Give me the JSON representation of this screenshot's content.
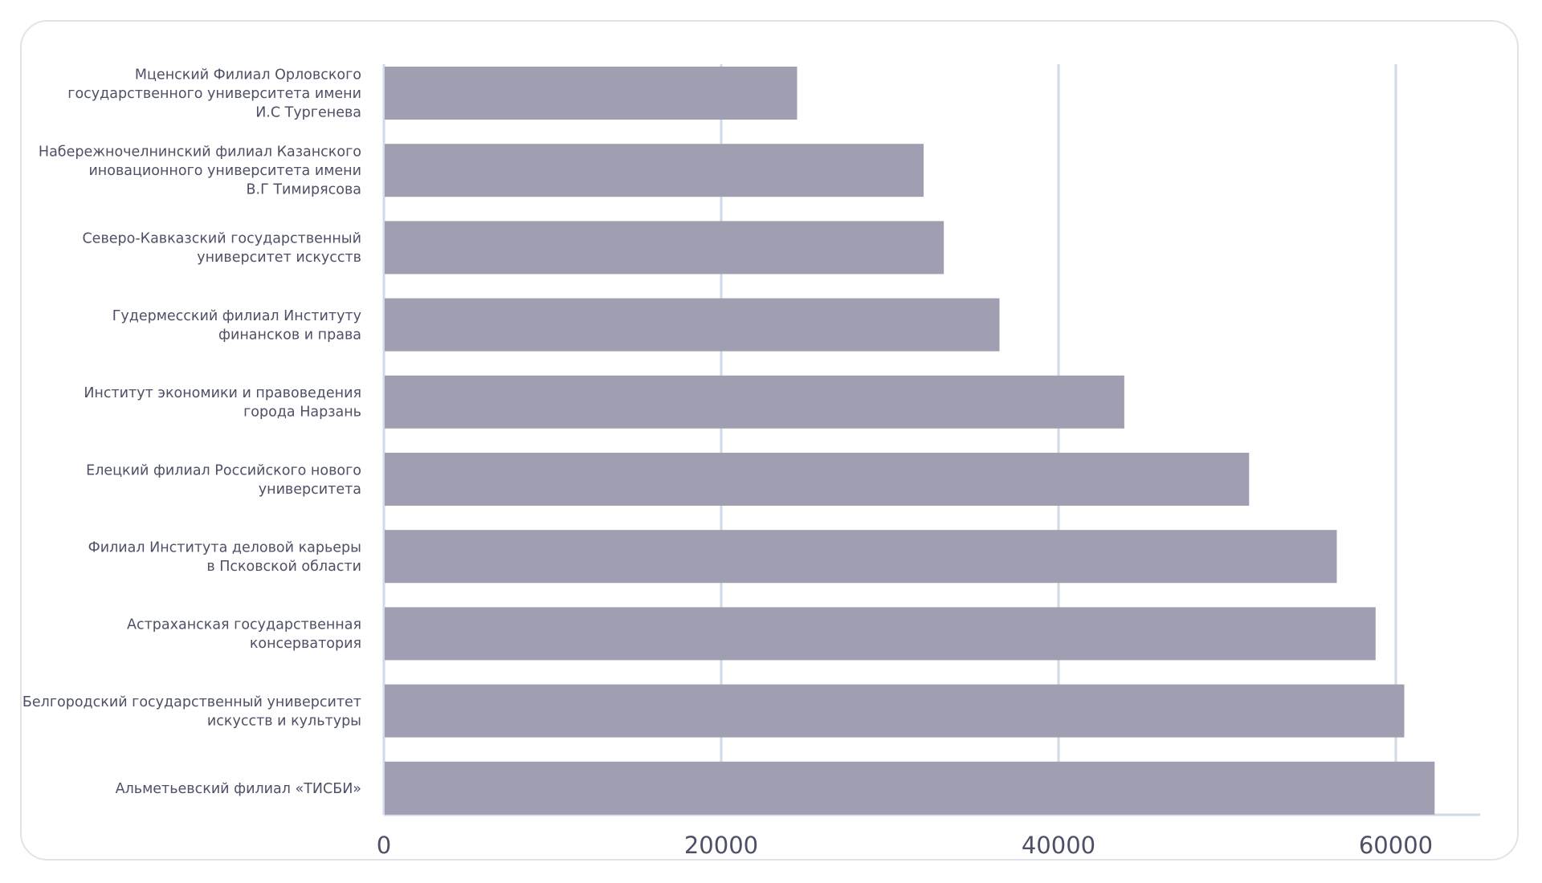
{
  "chart_data": {
    "type": "bar",
    "orientation": "horizontal",
    "title": "",
    "xlabel": "",
    "ylabel": "",
    "grid": true,
    "xlim": [
      0,
      65000
    ],
    "xticks": [
      "0",
      "20000",
      "40000",
      "60000"
    ],
    "categories": [
      [
        "Мценский Филиал Орловского",
        "государственного университета имени",
        "И.С Тургенева"
      ],
      [
        "Набережночелнинский филиал Казанского",
        "иновационного университета имени",
        "В.Г Тимирясова"
      ],
      [
        "Северо-Кавказский государственный",
        "университет искусств"
      ],
      [
        "Гудермесский филиал Институту",
        "финансков и права"
      ],
      [
        "Институт экономики и правоведения",
        "города Нарзань"
      ],
      [
        "Елецкий филиал Российского нового",
        "университета"
      ],
      [
        "Филиал Института деловой карьеры",
        "в Псковской области"
      ],
      [
        "Астраханская государственная",
        "консерватория"
      ],
      [
        "Белгородский государственный университет",
        "искусств и культуры"
      ],
      [
        "Альметьевский филиал «ТИСБИ»"
      ]
    ],
    "values": [
      24500,
      32000,
      33200,
      36500,
      43900,
      51300,
      56500,
      58800,
      60500,
      62300
    ],
    "colors": {
      "bar": "#a09fb1",
      "grid": "#cfd9e8",
      "text": "#4d5066"
    }
  }
}
